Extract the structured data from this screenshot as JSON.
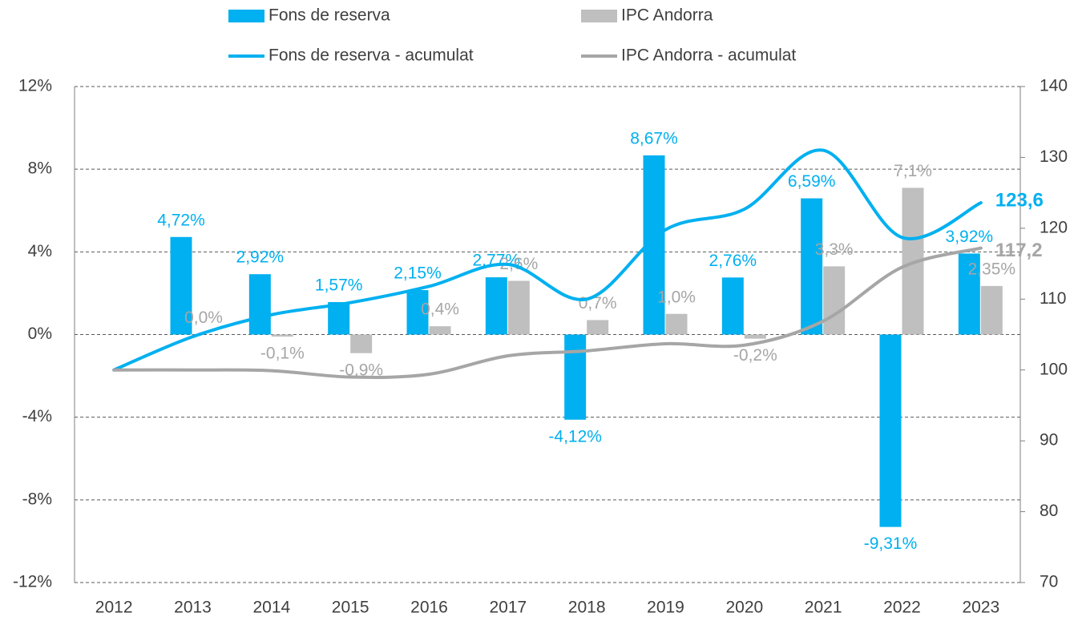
{
  "chart_data": {
    "type": "bar_line_combo",
    "categories": [
      "2012",
      "2013",
      "2014",
      "2015",
      "2016",
      "2017",
      "2018",
      "2019",
      "2020",
      "2021",
      "2022",
      "2023"
    ],
    "ylim": [
      -12,
      12
    ],
    "yticks": [
      {
        "value": -12,
        "label": "-12%"
      },
      {
        "value": -8,
        "label": "-8%"
      },
      {
        "value": -4,
        "label": "-4%"
      },
      {
        "value": 0,
        "label": "0%"
      },
      {
        "value": 4,
        "label": "4%"
      },
      {
        "value": 8,
        "label": "8%"
      },
      {
        "value": 12,
        "label": "12%"
      }
    ],
    "y2lim": [
      70,
      140
    ],
    "y2ticks": [
      70,
      80,
      90,
      100,
      110,
      120,
      130,
      140
    ],
    "grid": true,
    "series": [
      {
        "name": "Fons de reserva",
        "type": "bar",
        "color": "#00b0f0",
        "values": [
          null,
          4.72,
          2.92,
          1.57,
          2.15,
          2.77,
          -4.12,
          8.67,
          2.76,
          6.59,
          -9.31,
          3.92
        ],
        "value_labels": [
          null,
          "4,72%",
          "2,92%",
          "1,57%",
          "2,15%",
          "2,77%",
          "-4,12%",
          "8,67%",
          "2,76%",
          "6,59%",
          "-9,31%",
          "3,92%"
        ]
      },
      {
        "name": "IPC Andorra",
        "type": "bar",
        "color": "#bfbfbf",
        "values": [
          null,
          0.0,
          -0.1,
          -0.9,
          0.4,
          2.6,
          0.7,
          1.0,
          -0.2,
          3.3,
          7.1,
          2.35
        ],
        "value_labels": [
          null,
          "0,0%",
          "-0,1%",
          "-0,9%",
          "0,4%",
          "2,6%",
          "0,7%",
          "1,0%",
          "-0,2%",
          "3,3%",
          "7,1%",
          "2,35%"
        ]
      },
      {
        "name": "Fons de reserva - acumulat",
        "type": "line",
        "axis": "y2",
        "color": "#00b0f0",
        "values": [
          100,
          104.7,
          107.8,
          109.5,
          111.8,
          114.9,
          110.0,
          119.8,
          122.7,
          131.0,
          118.7,
          123.6
        ],
        "value_labels": [
          null,
          null,
          null,
          null,
          null,
          null,
          null,
          null,
          null,
          null,
          null,
          "123,6"
        ]
      },
      {
        "name": "IPC Andorra - acumulat",
        "type": "line",
        "axis": "y2",
        "color": "#a6a6a6",
        "values": [
          100,
          100,
          99.9,
          99.0,
          99.4,
          102.0,
          102.7,
          103.7,
          103.5,
          106.9,
          114.5,
          117.2
        ],
        "value_labels": [
          null,
          null,
          null,
          null,
          null,
          null,
          null,
          null,
          null,
          null,
          null,
          "117,2"
        ]
      }
    ]
  }
}
